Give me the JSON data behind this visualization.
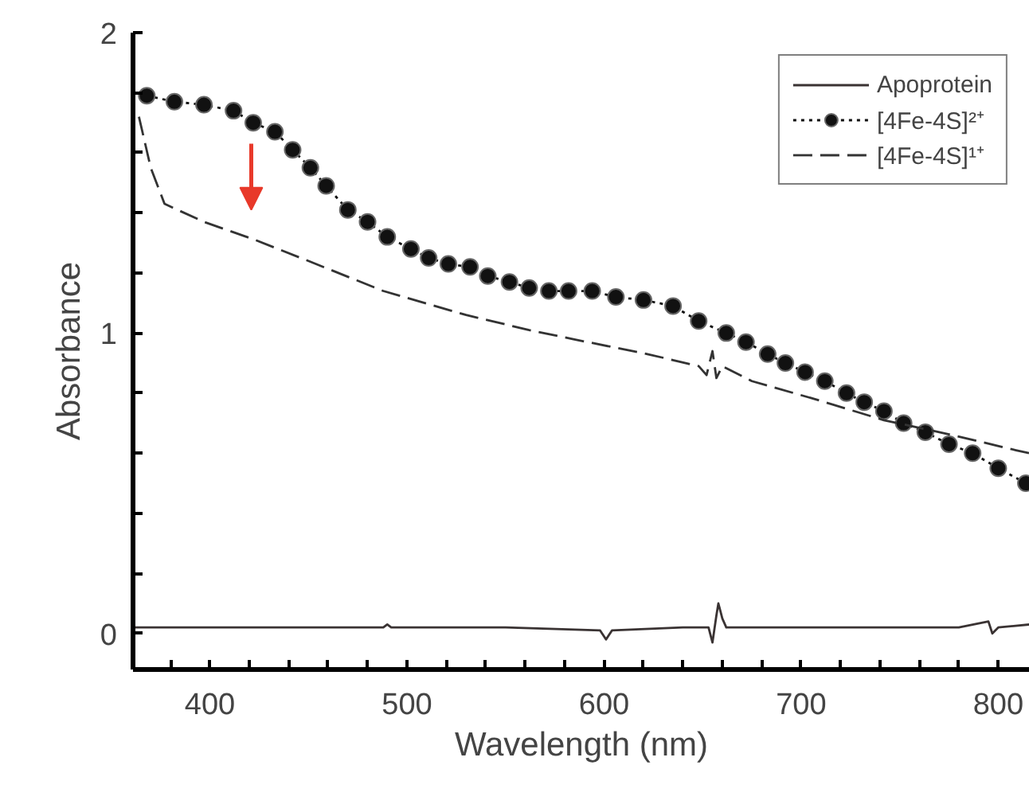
{
  "chart_data": {
    "type": "line",
    "xlabel": "Wavelength (nm)",
    "ylabel": "Absorbance",
    "xlim": [
      361,
      816
    ],
    "ylim": [
      -0.12,
      2
    ],
    "xticks": [
      {
        "value": 380,
        "label": null
      },
      400,
      {
        "value": 420,
        "label": null
      },
      {
        "value": 440,
        "label": null
      },
      {
        "value": 460,
        "label": null
      },
      {
        "value": 480,
        "label": null
      },
      500,
      {
        "value": 520,
        "label": null
      },
      {
        "value": 540,
        "label": null
      },
      {
        "value": 560,
        "label": null
      },
      {
        "value": 580,
        "label": null
      },
      600,
      {
        "value": 620,
        "label": null
      },
      {
        "value": 640,
        "label": null
      },
      {
        "value": 660,
        "label": null
      },
      {
        "value": 680,
        "label": null
      },
      700,
      {
        "value": 720,
        "label": null
      },
      {
        "value": 740,
        "label": null
      },
      {
        "value": 760,
        "label": null
      },
      {
        "value": 780,
        "label": null
      },
      800
    ],
    "yticks": [
      0,
      {
        "value": 0.2,
        "label": null
      },
      {
        "value": 0.4,
        "label": null
      },
      {
        "value": 0.6,
        "label": null
      },
      {
        "value": 0.8,
        "label": null
      },
      1,
      {
        "value": 1.2,
        "label": null
      },
      {
        "value": 1.4,
        "label": null
      },
      {
        "value": 1.6,
        "label": null
      },
      {
        "value": 1.8,
        "label": null
      },
      2
    ],
    "grid": false,
    "legend": "top right",
    "series": [
      {
        "name": "Apoprotein",
        "color": "#3a3333",
        "line_style": "solid",
        "marker": "none",
        "x": [
          362,
          400,
          450,
          488,
          490,
          492,
          550,
          598,
          601,
          604,
          640,
          653,
          655,
          657,
          658,
          660,
          662,
          700,
          750,
          780,
          795,
          797,
          800,
          816
        ],
        "values": [
          0.02,
          0.02,
          0.02,
          0.02,
          0.03,
          0.02,
          0.02,
          0.01,
          -0.02,
          0.01,
          0.02,
          0.02,
          -0.03,
          0.06,
          0.1,
          0.05,
          0.02,
          0.02,
          0.02,
          0.02,
          0.04,
          0.0,
          0.02,
          0.03
        ]
      },
      {
        "name": "[4Fe-4S]²⁺",
        "color": "#111111",
        "line_style": "dotted",
        "marker": "circle",
        "x": [
          368,
          382,
          397,
          412,
          422,
          433,
          442,
          451,
          459,
          470,
          480,
          490,
          502,
          511,
          521,
          532,
          541,
          552,
          562,
          572,
          582,
          594,
          606,
          620,
          635,
          648,
          662,
          672,
          683,
          692,
          702,
          712,
          723,
          732,
          742,
          752,
          763,
          775,
          787,
          800,
          814
        ],
        "values": [
          1.79,
          1.77,
          1.76,
          1.74,
          1.7,
          1.67,
          1.61,
          1.55,
          1.49,
          1.41,
          1.37,
          1.32,
          1.28,
          1.25,
          1.23,
          1.22,
          1.19,
          1.17,
          1.15,
          1.14,
          1.14,
          1.14,
          1.12,
          1.11,
          1.09,
          1.04,
          1.0,
          0.97,
          0.93,
          0.9,
          0.87,
          0.84,
          0.8,
          0.77,
          0.74,
          0.7,
          0.67,
          0.63,
          0.6,
          0.55,
          0.5
        ]
      },
      {
        "name": "[4Fe-4S]¹⁺",
        "color": "#333333",
        "line_style": "dashed",
        "marker": "none",
        "x": [
          364,
          370,
          377,
          397,
          423,
          450,
          488,
          530,
          562,
          584,
          622,
          648,
          652,
          655,
          657,
          660,
          675,
          707,
          742,
          777,
          809,
          816
        ],
        "values": [
          1.72,
          1.55,
          1.43,
          1.37,
          1.31,
          1.24,
          1.14,
          1.06,
          1.01,
          0.98,
          0.93,
          0.89,
          0.86,
          0.94,
          0.85,
          0.89,
          0.84,
          0.78,
          0.71,
          0.66,
          0.61,
          0.6
        ]
      }
    ]
  }
}
